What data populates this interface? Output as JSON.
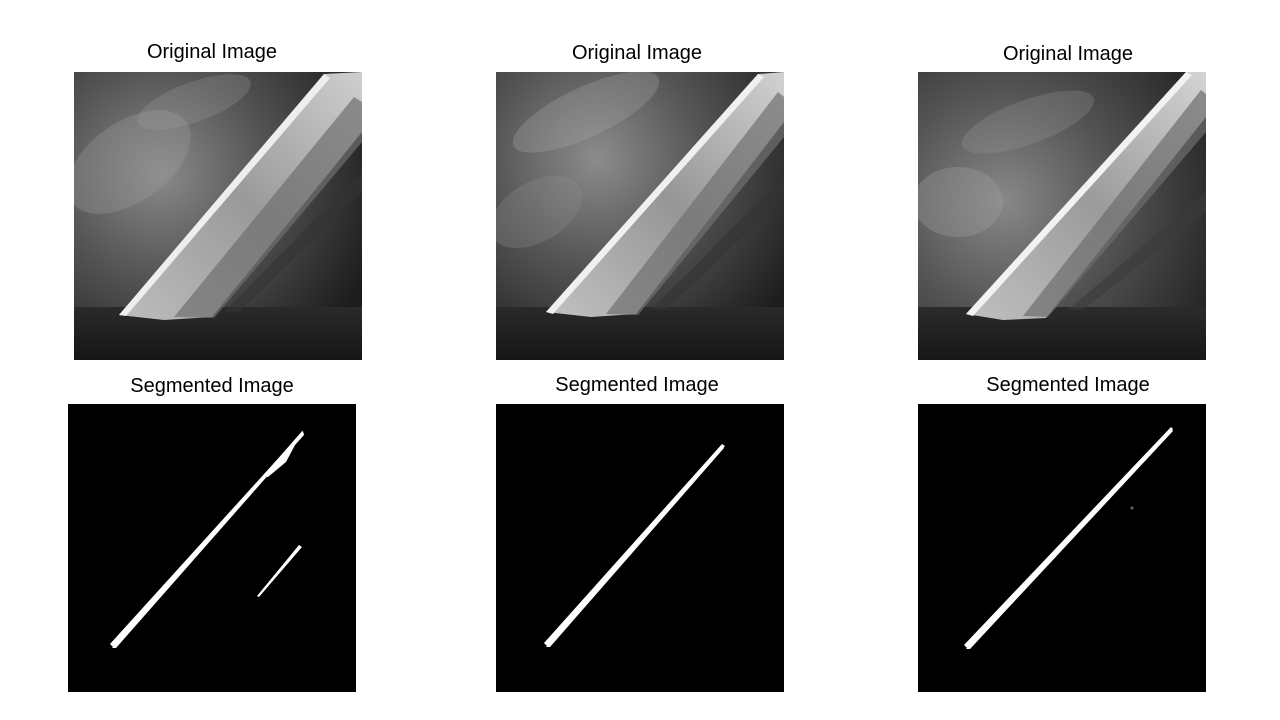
{
  "figure": {
    "panels": [
      {
        "title": "Original Image",
        "kind": "original"
      },
      {
        "title": "Original Image",
        "kind": "original"
      },
      {
        "title": "Original Image",
        "kind": "original"
      },
      {
        "title": "Segmented Image",
        "kind": "segmented"
      },
      {
        "title": "Segmented Image",
        "kind": "segmented"
      },
      {
        "title": "Segmented Image",
        "kind": "segmented"
      }
    ]
  },
  "colors": {
    "background": "#ffffff",
    "mask_background": "#000000",
    "mask_foreground": "#ffffff"
  }
}
